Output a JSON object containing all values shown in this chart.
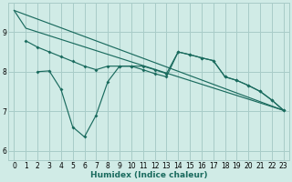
{
  "xlabel": "Humidex (Indice chaleur)",
  "bg_color": "#d0ebe6",
  "grid_color": "#a8ccc8",
  "line_color": "#1a6b5e",
  "xlim": [
    -0.5,
    23.5
  ],
  "ylim": [
    5.75,
    9.75
  ],
  "xticks": [
    0,
    1,
    2,
    3,
    4,
    5,
    6,
    7,
    8,
    9,
    10,
    11,
    12,
    13,
    14,
    15,
    16,
    17,
    18,
    19,
    20,
    21,
    22,
    23
  ],
  "yticks": [
    6,
    7,
    8,
    9
  ],
  "line1_x": [
    0,
    1,
    23
  ],
  "line1_y": [
    9.55,
    9.1,
    7.02
  ],
  "line2_x": [
    0,
    23
  ],
  "line2_y": [
    9.55,
    7.02
  ],
  "line3_x": [
    1,
    2,
    3,
    4,
    5,
    6,
    7,
    8,
    9,
    10,
    11,
    12,
    13,
    14,
    15,
    16,
    17,
    18,
    19,
    20,
    21,
    22,
    23
  ],
  "line3_y": [
    8.78,
    8.62,
    8.5,
    8.38,
    8.26,
    8.14,
    8.05,
    8.14,
    8.14,
    8.14,
    8.14,
    8.05,
    7.95,
    8.5,
    8.43,
    8.35,
    8.28,
    7.87,
    7.78,
    7.65,
    7.5,
    7.28,
    7.02
  ],
  "line4_x": [
    2,
    3,
    4,
    5,
    6,
    7,
    8,
    9,
    10,
    11,
    12,
    13,
    14,
    15,
    16,
    17,
    18,
    19,
    20,
    21,
    22,
    23
  ],
  "line4_y": [
    8.0,
    8.02,
    7.55,
    6.6,
    6.35,
    6.9,
    7.75,
    8.14,
    8.14,
    8.05,
    7.95,
    7.87,
    8.5,
    8.43,
    8.35,
    8.28,
    7.87,
    7.78,
    7.65,
    7.5,
    7.28,
    7.02
  ]
}
